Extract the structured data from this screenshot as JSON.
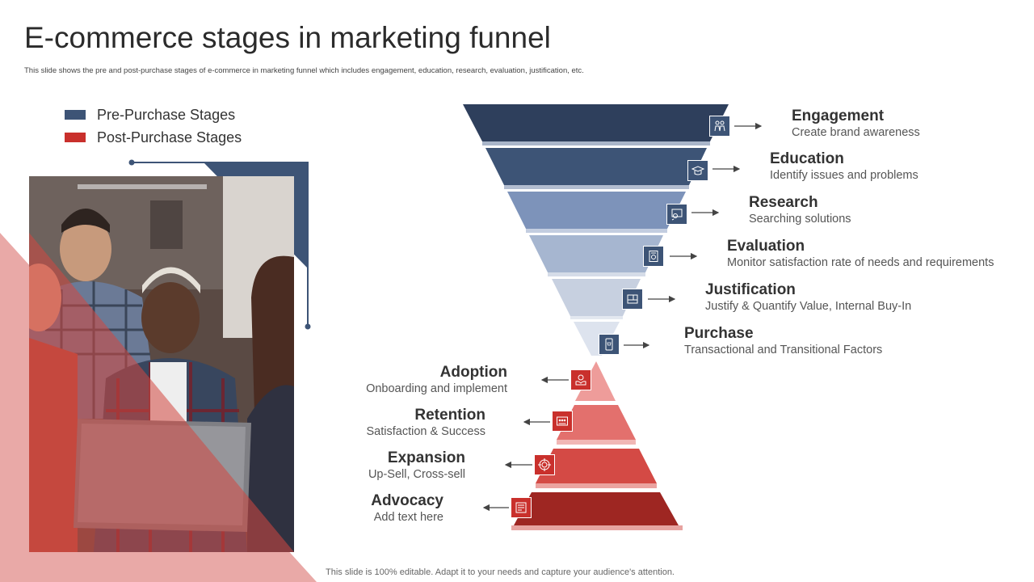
{
  "header": {
    "title": "E-commerce stages in marketing funnel",
    "subtitle": "This slide shows the pre and post-purchase stages of e-commerce in marketing  funnel which includes engagement, education, research, evaluation, justification, etc."
  },
  "legend": {
    "pre_label": "Pre-Purchase Stages",
    "post_label": "Post-Purchase Stages",
    "pre_color": "#3d5476",
    "post_color": "#c9302c"
  },
  "pre_stages": [
    {
      "title": "Engagement",
      "desc": "Create brand awareness",
      "icon": "people-icon",
      "color": "#2e3f5c"
    },
    {
      "title": "Education",
      "desc": "Identify issues and problems",
      "icon": "graduation-cap-icon",
      "color": "#3d5476"
    },
    {
      "title": "Research",
      "desc": "Searching solutions",
      "icon": "search-screen-icon",
      "color": "#7d93ba"
    },
    {
      "title": "Evaluation",
      "desc": "Monitor satisfaction rate of needs and requirements",
      "icon": "document-check-icon",
      "color": "#a6b6d0"
    },
    {
      "title": "Justification",
      "desc": "Justify & Quantify Value, Internal Buy-In",
      "icon": "window-icon",
      "color": "#c7d0e0"
    },
    {
      "title": "Purchase",
      "desc": "Transactional and Transitional Factors",
      "icon": "mobile-cart-icon",
      "color": "#dde3ee"
    }
  ],
  "post_stages": [
    {
      "title": "Adoption",
      "desc": "Onboarding and implement",
      "icon": "hand-coin-icon",
      "color": "#ee9c9a"
    },
    {
      "title": "Retention",
      "desc": "Satisfaction & Success",
      "icon": "customers-icon",
      "color": "#e3706d"
    },
    {
      "title": "Expansion",
      "desc": "Up-Sell, Cross-sell",
      "icon": "target-icon",
      "color": "#d44a45"
    },
    {
      "title": "Advocacy",
      "desc": "Add text here",
      "icon": "advocacy-board-icon",
      "color": "#9e2622"
    }
  ],
  "footer": "This slide is 100% editable. Adapt it to your needs and capture your audience's attention."
}
